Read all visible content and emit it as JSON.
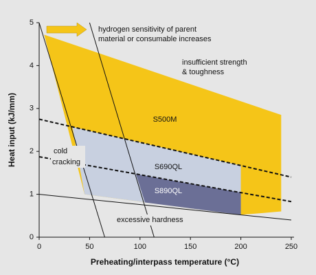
{
  "chart_data": {
    "type": "area",
    "xlabel": "Preheating/interpass temperature (°C)",
    "ylabel": "Heat input (kJ/mm)",
    "xlim": [
      0,
      250
    ],
    "ylim": [
      0,
      5
    ],
    "xticks": [
      0,
      50,
      100,
      150,
      200,
      250
    ],
    "yticks": [
      0,
      1,
      2,
      3,
      4,
      5
    ],
    "series": [
      {
        "name": "S500M",
        "color": "#f5c518",
        "x": [
          5,
          240,
          240,
          200,
          45
        ],
        "values": [
          4.72,
          2.85,
          0.6,
          0.52,
          1.0
        ]
      },
      {
        "name": "S690QL",
        "color": "#c8d0e0",
        "x": [
          33,
          200,
          200,
          45
        ],
        "values": [
          2.57,
          1.67,
          0.52,
          1.0
        ]
      },
      {
        "name": "S890QL",
        "color": "#6b6f96",
        "x": [
          96,
          200,
          200,
          105
        ],
        "values": [
          1.47,
          1.04,
          0.52,
          0.81
        ]
      }
    ],
    "lines": [
      {
        "x": [
          0,
          65
        ],
        "values": [
          5,
          0
        ],
        "style": "solid"
      },
      {
        "x": [
          50,
          114
        ],
        "values": [
          5,
          0
        ],
        "style": "solid"
      },
      {
        "x": [
          0,
          250
        ],
        "values": [
          1.0,
          0.4
        ],
        "style": "solid"
      },
      {
        "x": [
          0,
          250
        ],
        "values": [
          2.75,
          1.4
        ],
        "style": "dashed"
      },
      {
        "x": [
          0,
          250
        ],
        "values": [
          1.875,
          0.83
        ],
        "style": "dashed"
      }
    ],
    "annotations": [
      "hydrogen sensitivity of parent",
      "material or consumable increases",
      "insufficient strength",
      "& toughness",
      "cold",
      "cracking",
      "excessive hardness"
    ]
  }
}
